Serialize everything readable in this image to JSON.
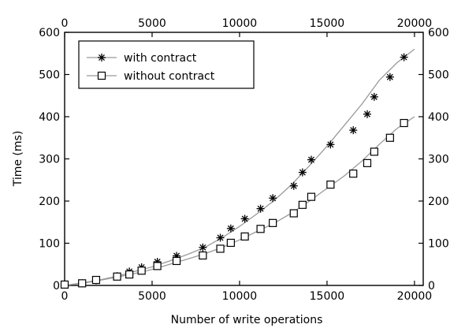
{
  "chart_data": {
    "type": "line",
    "xlabel": "Number of write operations",
    "ylabel": "Time (ms)",
    "xlim": [
      0,
      20500
    ],
    "ylim": [
      0,
      600
    ],
    "x_ticks": [
      0,
      5000,
      10000,
      15000,
      20000
    ],
    "y_ticks": [
      0,
      100,
      200,
      300,
      400,
      500,
      600
    ],
    "top_axis_ticks": [
      0,
      5000,
      10000,
      15000,
      20000
    ],
    "right_axis_ticks": [
      0,
      100,
      200,
      300,
      400,
      500,
      600
    ],
    "grid": false,
    "legend_position": "top-left",
    "line_color": "#999999",
    "marker_color": "#000000",
    "series": [
      {
        "name": "with contract",
        "marker": "asterisk",
        "x": [
          0,
          1000,
          2000,
          3000,
          4000,
          5000,
          6000,
          7000,
          8000,
          9000,
          10000,
          11000,
          12000,
          13000,
          14000,
          15000,
          16000,
          17000,
          18000,
          19000,
          20000
        ],
        "y": [
          0,
          6,
          13,
          22,
          33,
          44,
          58,
          73,
          90,
          113,
          140,
          170,
          202,
          240,
          284,
          330,
          380,
          430,
          487,
          528,
          560
        ],
        "marker_x": [
          0,
          1000,
          1800,
          3000,
          3700,
          4400,
          5300,
          6400,
          7900,
          8900,
          9500,
          10300,
          11200,
          11900,
          13100,
          13600,
          14100,
          15200,
          16500,
          17300,
          17700,
          18600,
          19400
        ],
        "marker_y": [
          2,
          5,
          12,
          22,
          33,
          43,
          56,
          70,
          90,
          113,
          135,
          158,
          182,
          207,
          236,
          268,
          298,
          334,
          368,
          406,
          447,
          494,
          541
        ]
      },
      {
        "name": "without contract",
        "marker": "square",
        "x": [
          0,
          1000,
          2000,
          3000,
          4000,
          5000,
          6000,
          7000,
          8000,
          9000,
          10000,
          11000,
          12000,
          13000,
          14000,
          15000,
          16000,
          17000,
          18000,
          19000,
          20000
        ],
        "y": [
          0,
          5,
          12,
          20,
          28,
          38,
          50,
          62,
          75,
          90,
          108,
          128,
          148,
          172,
          200,
          230,
          260,
          295,
          335,
          372,
          400
        ],
        "marker_x": [
          0,
          1000,
          1800,
          3000,
          3700,
          4400,
          5300,
          6400,
          7900,
          8900,
          9500,
          10300,
          11200,
          11900,
          13100,
          13600,
          14100,
          15200,
          16500,
          17300,
          17700,
          18600,
          19400
        ],
        "marker_y": [
          2,
          5,
          13,
          21,
          26,
          35,
          46,
          58,
          71,
          87,
          101,
          116,
          134,
          148,
          171,
          191,
          210,
          239,
          265,
          290,
          317,
          350,
          385
        ]
      }
    ]
  }
}
